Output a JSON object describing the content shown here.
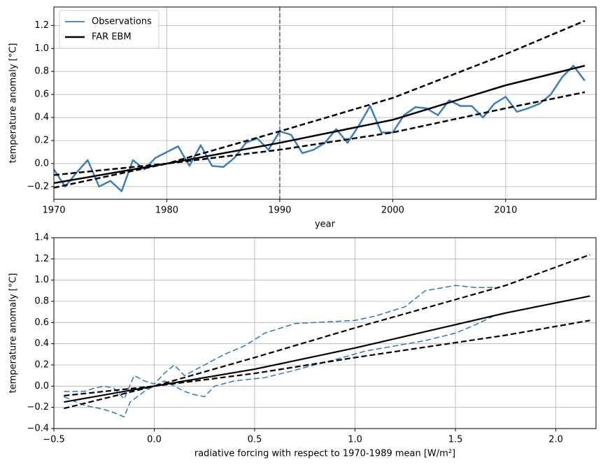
{
  "chart_data": [
    {
      "type": "line",
      "xlabel": "year",
      "ylabel": "temperature anomaly [°C]",
      "xlim": [
        1970,
        2018
      ],
      "ylim": [
        -0.31,
        1.36
      ],
      "xticks": [
        1970,
        1980,
        1990,
        2000,
        2010
      ],
      "yticks": [
        {
          "value": -0.2,
          "label": "−0.2"
        },
        {
          "value": 0,
          "label": "0.0"
        },
        {
          "value": 0.2,
          "label": "0.2"
        },
        {
          "value": 0.4,
          "label": "0.4"
        },
        {
          "value": 0.6,
          "label": "0.6"
        },
        {
          "value": 0.8,
          "label": "0.8"
        },
        {
          "value": 1.0,
          "label": "1.0"
        },
        {
          "value": 1.2,
          "label": "1.2"
        }
      ],
      "grid": true,
      "legend": "upper left",
      "vline": 1990,
      "vline_color": "#808080",
      "series": [
        {
          "name": "Observations",
          "color": "#3a7fbd",
          "width": 2.5,
          "x": [
            1970,
            1971,
            1972,
            1973,
            1974,
            1975,
            1976,
            1977,
            1978,
            1979,
            1980,
            1981,
            1982,
            1983,
            1984,
            1985,
            1986,
            1987,
            1988,
            1989,
            1990,
            1991,
            1992,
            1993,
            1994,
            1995,
            1996,
            1997,
            1998,
            1999,
            2000,
            2001,
            2002,
            2003,
            2004,
            2005,
            2006,
            2007,
            2008,
            2009,
            2010,
            2011,
            2012,
            2013,
            2014,
            2015,
            2016,
            2017
          ],
          "values": [
            -0.05,
            -0.2,
            -0.08,
            0.03,
            -0.2,
            -0.15,
            -0.24,
            0.03,
            -0.05,
            0.05,
            0.1,
            0.15,
            -0.02,
            0.16,
            -0.02,
            -0.03,
            0.05,
            0.18,
            0.22,
            0.12,
            0.28,
            0.25,
            0.09,
            0.12,
            0.18,
            0.3,
            0.18,
            0.33,
            0.5,
            0.27,
            0.27,
            0.42,
            0.49,
            0.48,
            0.42,
            0.55,
            0.5,
            0.5,
            0.4,
            0.52,
            0.58,
            0.45,
            0.48,
            0.52,
            0.6,
            0.75,
            0.85,
            0.72
          ]
        },
        {
          "name": "FAR EBM",
          "color": "#000000",
          "width": 2.5,
          "x": [
            1970,
            1980,
            1990,
            2000,
            2010,
            2017
          ],
          "values": [
            -0.17,
            0.0,
            0.18,
            0.38,
            0.68,
            0.85
          ]
        },
        {
          "color": "#000000",
          "width": 2.5,
          "dash": true,
          "x": [
            1970,
            1980,
            1990,
            2000,
            2010,
            2017
          ],
          "values": [
            -0.1,
            0.0,
            0.28,
            0.57,
            0.95,
            1.24
          ]
        },
        {
          "color": "#000000",
          "width": 2.5,
          "dash": true,
          "x": [
            1970,
            1980,
            1990,
            2000,
            2010,
            2017
          ],
          "values": [
            -0.21,
            0.0,
            0.12,
            0.27,
            0.48,
            0.62
          ]
        }
      ]
    },
    {
      "type": "line",
      "xlabel": "radiative forcing with respect to 1970-1989 mean [W/m²]",
      "ylabel": "temperature anomaly [°C]",
      "xlim": [
        -0.5,
        2.2
      ],
      "ylim": [
        -0.4,
        1.4
      ],
      "xticks": [
        {
          "value": -0.5,
          "label": "−0.5"
        },
        {
          "value": 0,
          "label": "0.0"
        },
        0.5,
        {
          "value": 1.0,
          "label": "1.0"
        },
        1.5,
        {
          "value": 2.0,
          "label": "2.0"
        }
      ],
      "yticks": [
        {
          "value": -0.4,
          "label": "−0.4"
        },
        {
          "value": -0.2,
          "label": "−0.2"
        },
        {
          "value": 0,
          "label": "0.0"
        },
        0.2,
        0.4,
        0.6,
        0.8,
        {
          "value": 1.0,
          "label": "1.0"
        },
        1.2,
        1.4
      ],
      "grid": true,
      "series": [
        {
          "color": "#2a7abf",
          "width": 1.5,
          "dash": true,
          "x": [
            -0.45,
            -0.35,
            -0.3,
            -0.25,
            -0.2,
            -0.15,
            -0.1,
            -0.05,
            0.0,
            0.05,
            0.1,
            0.15,
            0.2,
            0.25,
            0.35,
            0.45,
            0.55,
            0.7,
            0.8,
            0.9,
            1.0,
            1.1,
            1.25,
            1.35,
            1.5,
            1.6,
            1.7
          ],
          "values": [
            -0.05,
            -0.05,
            -0.02,
            0.0,
            -0.02,
            -0.12,
            0.1,
            0.05,
            0.02,
            0.12,
            0.2,
            0.1,
            0.15,
            0.2,
            0.3,
            0.38,
            0.5,
            0.59,
            0.6,
            0.61,
            0.62,
            0.66,
            0.75,
            0.9,
            0.95,
            0.93,
            0.93
          ]
        },
        {
          "color": "#2a7abf",
          "width": 1.5,
          "dash": true,
          "x": [
            -0.45,
            -0.35,
            -0.3,
            -0.25,
            -0.2,
            -0.15,
            -0.12,
            -0.05,
            0.0,
            0.05,
            0.1,
            0.15,
            0.2,
            0.25,
            0.3,
            0.4,
            0.55,
            0.7,
            0.9,
            1.05,
            1.2,
            1.35,
            1.5,
            1.6,
            1.7
          ],
          "values": [
            -0.1,
            -0.18,
            -0.2,
            -0.22,
            -0.25,
            -0.29,
            -0.15,
            -0.05,
            0.0,
            0.05,
            0.0,
            -0.05,
            -0.08,
            -0.1,
            0.0,
            0.05,
            0.08,
            0.15,
            0.25,
            0.33,
            0.38,
            0.43,
            0.5,
            0.58,
            0.67
          ]
        },
        {
          "color": "#000000",
          "width": 2.2,
          "x": [
            -0.45,
            0,
            0.5,
            1.0,
            1.75,
            2.17
          ],
          "values": [
            -0.15,
            0.0,
            0.16,
            0.36,
            0.69,
            0.85
          ]
        },
        {
          "color": "#000000",
          "width": 2.2,
          "dash": true,
          "x": [
            -0.45,
            0,
            0.5,
            1.0,
            1.75,
            2.17
          ],
          "values": [
            -0.09,
            0.0,
            0.27,
            0.55,
            0.95,
            1.24
          ]
        },
        {
          "color": "#000000",
          "width": 2.2,
          "dash": true,
          "x": [
            -0.45,
            0,
            0.5,
            1.0,
            1.75,
            2.17
          ],
          "values": [
            -0.21,
            0.0,
            0.12,
            0.27,
            0.48,
            0.62
          ]
        }
      ]
    }
  ]
}
